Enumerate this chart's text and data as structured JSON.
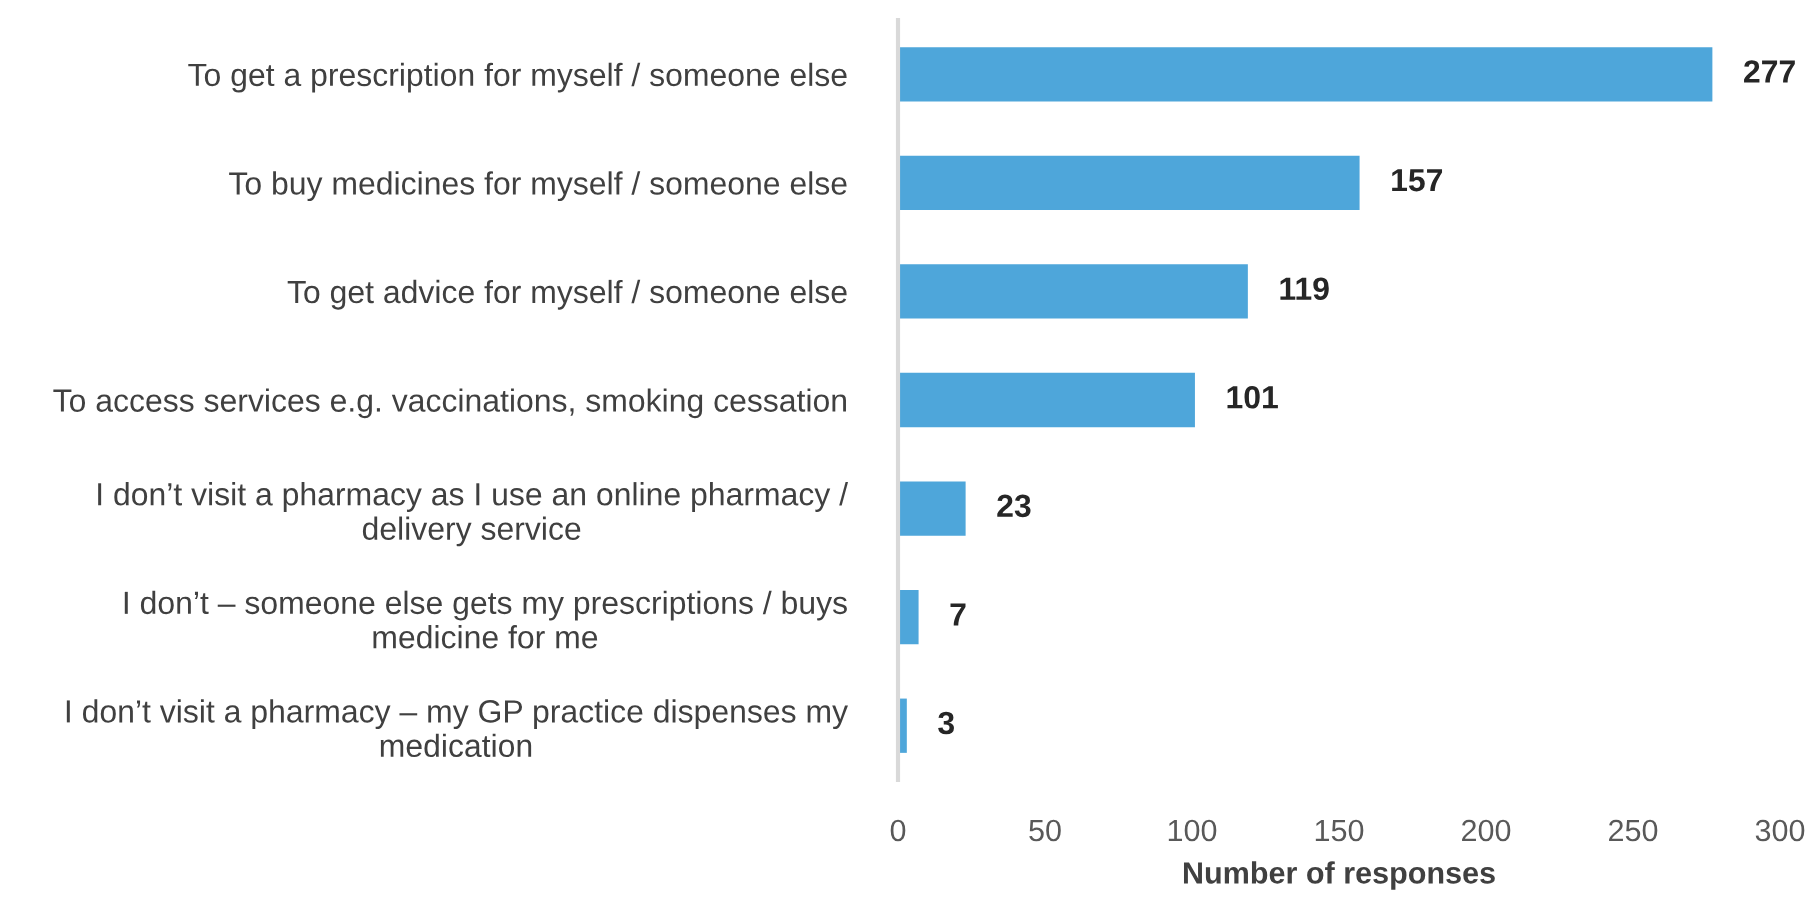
{
  "chart_data": {
    "type": "bar",
    "orientation": "horizontal",
    "xlabel": "Number of responses",
    "categories": [
      "To get a prescription for myself / someone else",
      "To buy medicines for myself / someone else",
      "To get advice for myself / someone else",
      "To access services e.g. vaccinations, smoking cessation",
      "I don’t visit a pharmacy as I use an online pharmacy / delivery service",
      "I don’t – someone else gets my prescriptions / buys medicine for me",
      "I don’t visit a pharmacy – my GP practice dispenses my medication"
    ],
    "values": [
      277,
      157,
      119,
      101,
      23,
      7,
      3
    ],
    "color": "#4ea6da",
    "xlim": [
      0,
      300
    ],
    "xticks": [
      0,
      50,
      100,
      150,
      200,
      250,
      300
    ],
    "data_labels": true,
    "grid": false
  }
}
